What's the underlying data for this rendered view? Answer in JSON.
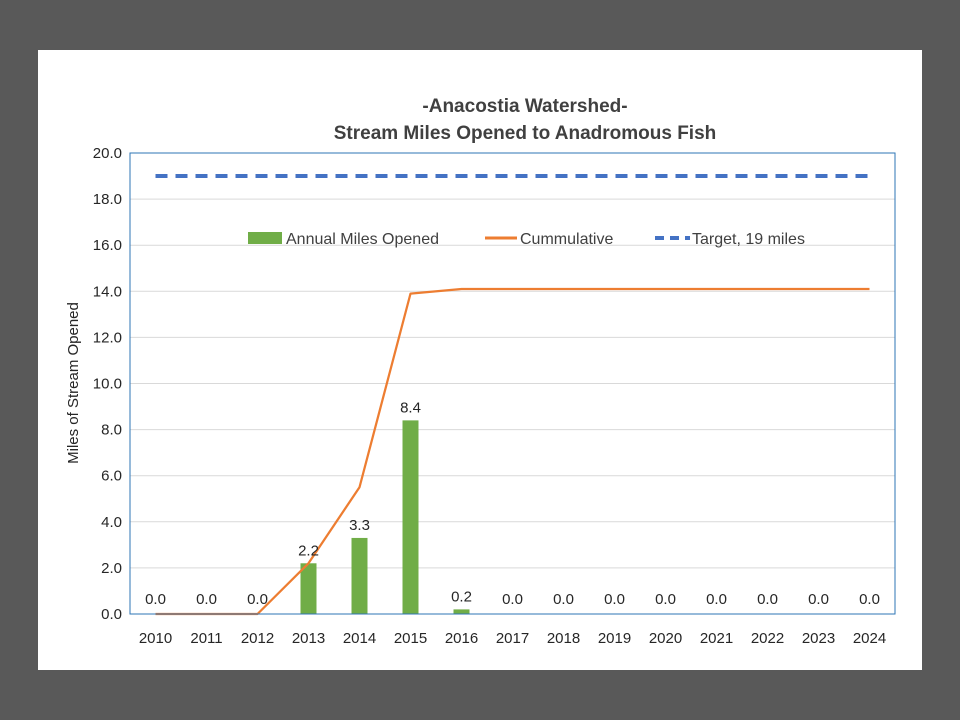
{
  "colors": {
    "background": "#595959",
    "bar": "#70ad47",
    "cumulative": "#ed7d31",
    "target": "#4472c4",
    "grid": "#d9d9d9",
    "plot_border": "#2e75b6"
  },
  "chart_data": {
    "type": "bar",
    "title_line1": "-Anacostia Watershed-",
    "title_line2": "Stream Miles Opened to Anadromous Fish",
    "xlabel": "",
    "ylabel": "Miles of Stream Opened",
    "ylim": [
      0,
      20
    ],
    "ytick_step": 2,
    "ytick_labels": [
      "0.0",
      "2.0",
      "4.0",
      "6.0",
      "8.0",
      "10.0",
      "12.0",
      "14.0",
      "16.0",
      "18.0",
      "20.0"
    ],
    "grid": true,
    "legend_position": "top-center",
    "categories": [
      "2010",
      "2011",
      "2012",
      "2013",
      "2014",
      "2015",
      "2016",
      "2017",
      "2018",
      "2019",
      "2020",
      "2021",
      "2022",
      "2023",
      "2024"
    ],
    "series": [
      {
        "name": "Annual Miles Opened",
        "type": "bar",
        "values": [
          0.0,
          0.0,
          0.0,
          2.2,
          3.3,
          8.4,
          0.2,
          0.0,
          0.0,
          0.0,
          0.0,
          0.0,
          0.0,
          0.0,
          0.0
        ],
        "labels": [
          "0.0",
          "0.0",
          "0.0",
          "2.2",
          "3.3",
          "8.4",
          "0.2",
          "0.0",
          "0.0",
          "0.0",
          "0.0",
          "0.0",
          "0.0",
          "0.0",
          "0.0"
        ]
      },
      {
        "name": "Cummulative",
        "type": "line",
        "values": [
          0.0,
          0.0,
          0.0,
          2.2,
          5.5,
          13.9,
          14.1,
          14.1,
          14.1,
          14.1,
          14.1,
          14.1,
          14.1,
          14.1,
          14.1
        ]
      },
      {
        "name": "Target, 19 miles",
        "type": "line-dashed",
        "values": [
          19,
          19,
          19,
          19,
          19,
          19,
          19,
          19,
          19,
          19,
          19,
          19,
          19,
          19,
          19
        ]
      }
    ]
  }
}
